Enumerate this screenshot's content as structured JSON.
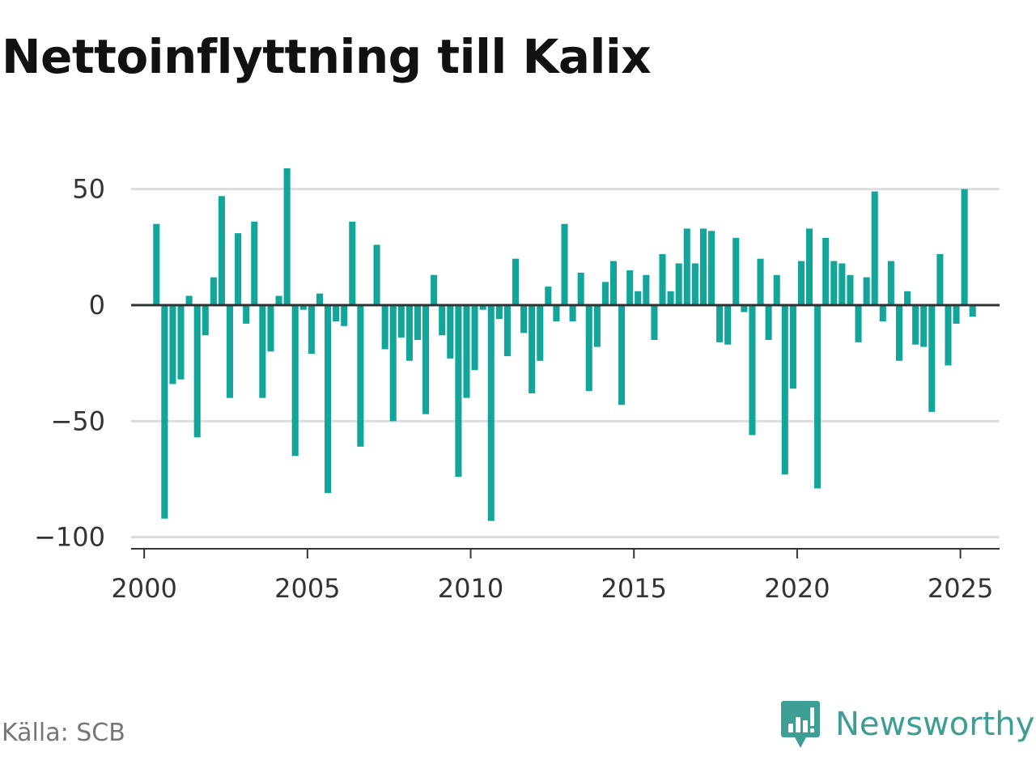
{
  "chart_data": {
    "type": "bar",
    "title": "Nettoinflyttning till Kalix",
    "xlabel": "",
    "ylabel": "",
    "source": "Källa: SCB",
    "brand": "Newsworthy",
    "color": "#12a59a",
    "zero_line_color": "#333333",
    "grid": true,
    "x_ticks": [
      2000,
      2005,
      2010,
      2015,
      2020,
      2025
    ],
    "y_ticks": [
      50,
      0,
      -50,
      -100
    ],
    "y_tick_labels": [
      "50",
      "0",
      "−50",
      "−100"
    ],
    "xlim": [
      1999.6,
      2026.2
    ],
    "ylim": [
      -105,
      60
    ],
    "x": [
      2000.375,
      2000.625,
      2000.875,
      2001.125,
      2001.375,
      2001.625,
      2001.875,
      2002.125,
      2002.375,
      2002.625,
      2002.875,
      2003.125,
      2003.375,
      2003.625,
      2003.875,
      2004.125,
      2004.375,
      2004.625,
      2004.875,
      2005.125,
      2005.375,
      2005.625,
      2005.875,
      2006.125,
      2006.375,
      2006.625,
      2006.875,
      2007.125,
      2007.375,
      2007.625,
      2007.875,
      2008.125,
      2008.375,
      2008.625,
      2008.875,
      2009.125,
      2009.375,
      2009.625,
      2009.875,
      2010.125,
      2010.375,
      2010.625,
      2010.875,
      2011.125,
      2011.375,
      2011.625,
      2011.875,
      2012.125,
      2012.375,
      2012.625,
      2012.875,
      2013.125,
      2013.375,
      2013.625,
      2013.875,
      2014.125,
      2014.375,
      2014.625,
      2014.875,
      2015.125,
      2015.375,
      2015.625,
      2015.875,
      2016.125,
      2016.375,
      2016.625,
      2016.875,
      2017.125,
      2017.375,
      2017.625,
      2017.875,
      2018.125,
      2018.375,
      2018.625,
      2018.875,
      2019.125,
      2019.375,
      2019.625,
      2019.875,
      2020.125,
      2020.375,
      2020.625,
      2020.875,
      2021.125,
      2021.375,
      2021.625,
      2021.875,
      2022.125,
      2022.375,
      2022.625,
      2022.875,
      2023.125,
      2023.375,
      2023.625,
      2023.875,
      2024.125,
      2024.375,
      2024.625,
      2024.875,
      2025.125,
      2025.375
    ],
    "values": [
      35,
      -92,
      -34,
      -32,
      4,
      -57,
      -13,
      12,
      47,
      -40,
      31,
      -8,
      36,
      -40,
      -20,
      4,
      59,
      -65,
      -2,
      -21,
      5,
      -81,
      -7,
      -9,
      36,
      -61,
      0,
      26,
      -19,
      -50,
      -14,
      -24,
      -15,
      -47,
      13,
      -13,
      -23,
      -74,
      -40,
      -28,
      -2,
      -93,
      -6,
      -22,
      20,
      -12,
      -38,
      -24,
      8,
      -7,
      35,
      -7,
      14,
      -37,
      -18,
      10,
      19,
      -43,
      15,
      6,
      13,
      -15,
      22,
      6,
      18,
      33,
      18,
      33,
      32,
      -16,
      -17,
      29,
      -3,
      -56,
      20,
      -15,
      13,
      -73,
      -36,
      19,
      33,
      -79,
      29,
      19,
      18,
      13,
      -16,
      12,
      49,
      -7,
      19,
      -24,
      6,
      -17,
      -18,
      -46,
      22,
      -26,
      -8,
      50,
      -5
    ]
  }
}
